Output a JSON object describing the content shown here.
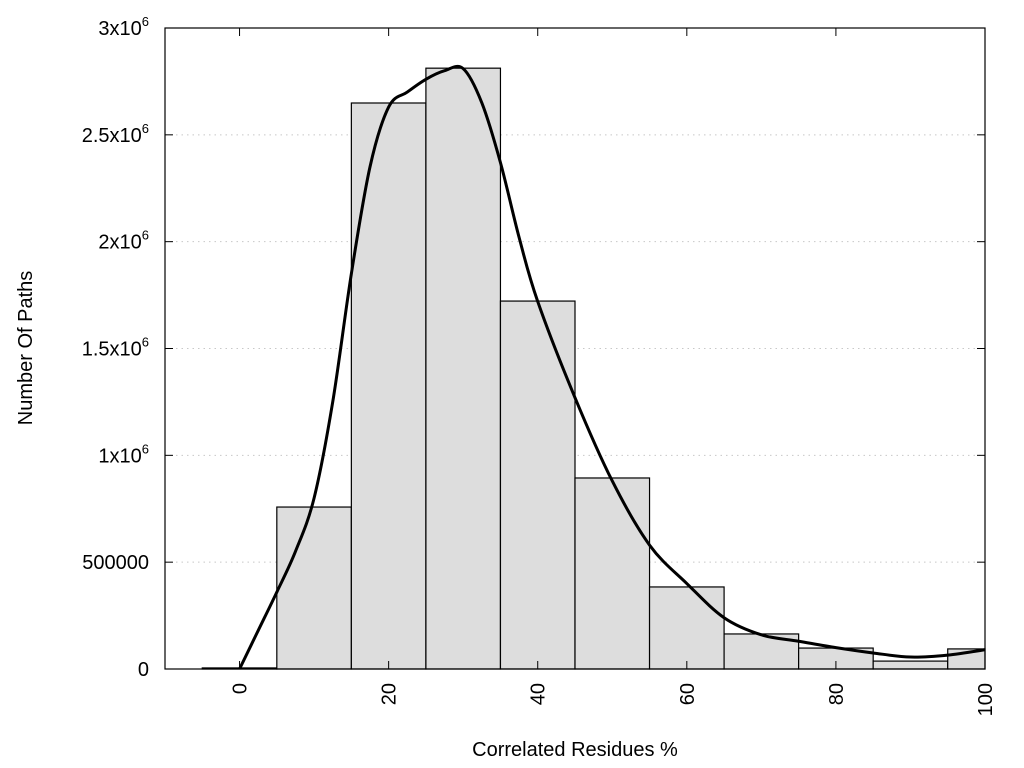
{
  "chart_data": {
    "type": "bar",
    "title": "",
    "xlabel": "Correlated Residues %",
    "ylabel": "Number Of Paths",
    "xlim": [
      -10,
      100
    ],
    "ylim": [
      0,
      3000000
    ],
    "grid": "horizontal dotted",
    "bar_width": 10,
    "bar_color": "#dddddd",
    "line_color": "#000000",
    "x_ticks": [
      {
        "value": 0,
        "label": "0"
      },
      {
        "value": 20,
        "label": "20"
      },
      {
        "value": 40,
        "label": "40"
      },
      {
        "value": 60,
        "label": "60"
      },
      {
        "value": 80,
        "label": "80"
      },
      {
        "value": 100,
        "label": "100"
      }
    ],
    "y_ticks": [
      {
        "value": 0,
        "label": "0",
        "sup": ""
      },
      {
        "value": 500000,
        "label": "500000",
        "sup": ""
      },
      {
        "value": 1000000,
        "label": "1x10",
        "sup": "6"
      },
      {
        "value": 1500000,
        "label": "1.5x10",
        "sup": "6"
      },
      {
        "value": 2000000,
        "label": "2x10",
        "sup": "6"
      },
      {
        "value": 2500000,
        "label": "2.5x10",
        "sup": "6"
      },
      {
        "value": 3000000,
        "label": "3x10",
        "sup": "6"
      }
    ],
    "bars": {
      "x": [
        0,
        10,
        20,
        30,
        40,
        50,
        60,
        70,
        80,
        90,
        100
      ],
      "values": [
        5000,
        758000,
        2649000,
        2812000,
        1722000,
        894000,
        384000,
        164000,
        98000,
        37000,
        94000
      ]
    },
    "curve": {
      "x": [
        0,
        2.5,
        5,
        7.5,
        10,
        12.5,
        15,
        17.5,
        20,
        22.5,
        25,
        27.5,
        30,
        32.5,
        35,
        37.5,
        40,
        45,
        50,
        55,
        60,
        65,
        70,
        75,
        80,
        85,
        90,
        95,
        100
      ],
      "values": [
        0,
        180000,
        360000,
        550000,
        800000,
        1250000,
        1850000,
        2350000,
        2630000,
        2700000,
        2760000,
        2800000,
        2810000,
        2650000,
        2370000,
        2020000,
        1720000,
        1270000,
        880000,
        580000,
        400000,
        240000,
        160000,
        130000,
        100000,
        75000,
        56000,
        65000,
        90000
      ]
    }
  }
}
